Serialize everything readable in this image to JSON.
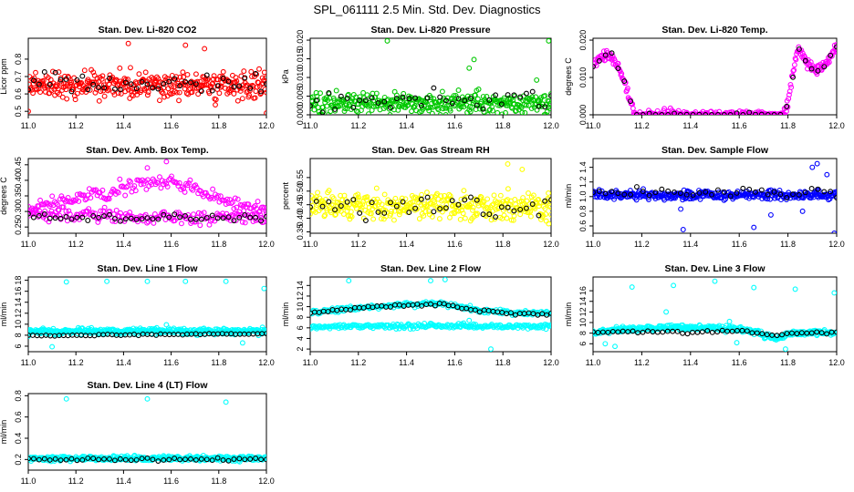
{
  "figure_title": "SPL_061111  2.5 Min. Std. Dev. Diagnostics",
  "colors": {
    "black": "#000000",
    "red": "#ff0000",
    "green": "#00c800",
    "magenta": "#ff00ff",
    "yellow": "#ffff00",
    "blue": "#0000ff",
    "cyan": "#00ffff"
  },
  "chart_data": [
    {
      "type": "scatter",
      "title": "Stan. Dev. Li-820 CO2",
      "ylabel": "Licor ppm",
      "xlim": [
        11.0,
        12.0
      ],
      "ylim": [
        0.48,
        0.92
      ],
      "xticks": [
        "11.0",
        "11.2",
        "11.4",
        "11.6",
        "11.8",
        "12.0"
      ],
      "yticks": [
        "0.5",
        "0.6",
        "0.7",
        "0.8"
      ],
      "color": "red",
      "gen": {
        "mode": "noise",
        "base": 0.65,
        "spread": 0.075,
        "n": 360,
        "seed": 11
      },
      "black_gen": {
        "mode": "noise",
        "base": 0.66,
        "spread": 0.06,
        "n": 45,
        "seed": 12
      },
      "outliers": [
        [
          11.66,
          0.88
        ],
        [
          11.42,
          0.89
        ],
        [
          11.74,
          0.86
        ],
        [
          11.0,
          0.5
        ],
        [
          12.0,
          0.49
        ]
      ]
    },
    {
      "type": "scatter",
      "title": "Stan. Dev. Li-820 Pressure",
      "ylabel": "kPa",
      "xlim": [
        11.0,
        12.0
      ],
      "ylim": [
        0.0,
        0.0205
      ],
      "xticks": [
        "11.0",
        "11.2",
        "11.4",
        "11.6",
        "11.8",
        "12.0"
      ],
      "yticks": [
        "0.000",
        "0.005",
        "0.010",
        "0.015",
        "0.020"
      ],
      "color": "green",
      "gen": {
        "mode": "noise",
        "base": 0.003,
        "spread": 0.0028,
        "n": 360,
        "seed": 21,
        "floor": 0.0
      },
      "black_gen": {
        "mode": "noise",
        "base": 0.004,
        "spread": 0.0025,
        "n": 40,
        "seed": 22,
        "floor": 0.0
      },
      "outliers": [
        [
          11.32,
          0.0198
        ],
        [
          11.66,
          0.0125
        ],
        [
          11.68,
          0.0148
        ],
        [
          11.94,
          0.0093
        ],
        [
          11.99,
          0.0198
        ]
      ]
    },
    {
      "type": "scatter",
      "title": "Stan. Dev. Li-820 Temp.",
      "ylabel": "degrees C",
      "xlim": [
        11.0,
        12.0
      ],
      "ylim": [
        0.0,
        0.0205
      ],
      "xticks": [
        "11.0",
        "11.2",
        "11.4",
        "11.6",
        "11.8",
        "12.0"
      ],
      "yticks": [
        "0.000",
        "0.010",
        "0.020"
      ],
      "color": "magenta",
      "gen": {
        "mode": "piecewise",
        "n": 360,
        "seed": 31,
        "spread": 0.0012,
        "floor": 0.0,
        "knots": [
          [
            11.0,
            0.0135
          ],
          [
            11.05,
            0.016
          ],
          [
            11.08,
            0.0155
          ],
          [
            11.13,
            0.009
          ],
          [
            11.17,
            0.0
          ],
          [
            11.78,
            0.0
          ],
          [
            11.8,
            0.003
          ],
          [
            11.84,
            0.018
          ],
          [
            11.88,
            0.014
          ],
          [
            11.92,
            0.012
          ],
          [
            11.96,
            0.014
          ],
          [
            12.0,
            0.018
          ]
        ]
      },
      "black_gen": {
        "mode": "piecewise",
        "n": 40,
        "seed": 32,
        "spread": 0.0008,
        "floor": 0.0,
        "knots": [
          [
            11.0,
            0.0135
          ],
          [
            11.05,
            0.016
          ],
          [
            11.08,
            0.0155
          ],
          [
            11.13,
            0.009
          ],
          [
            11.17,
            0.0
          ],
          [
            11.78,
            0.0
          ],
          [
            11.8,
            0.003
          ],
          [
            11.84,
            0.018
          ],
          [
            11.88,
            0.014
          ],
          [
            11.92,
            0.012
          ],
          [
            11.96,
            0.014
          ],
          [
            12.0,
            0.018
          ]
        ]
      },
      "outliers": []
    },
    {
      "type": "scatter",
      "title": "Stan. Dev. Amb. Box Temp.",
      "ylabel": "degrees C",
      "xlim": [
        11.0,
        12.0
      ],
      "ylim": [
        0.23,
        0.47
      ],
      "xticks": [
        "11.0",
        "11.2",
        "11.4",
        "11.6",
        "11.8",
        "12.0"
      ],
      "yticks": [
        "0.25",
        "0.30",
        "0.35",
        "0.40",
        "0.45"
      ],
      "color": "magenta",
      "gen": {
        "mode": "band2",
        "n": 360,
        "seed": 41,
        "spread": 0.022,
        "knots": [
          [
            11.0,
            0.31
          ],
          [
            11.2,
            0.34
          ],
          [
            11.45,
            0.385
          ],
          [
            11.6,
            0.395
          ],
          [
            11.8,
            0.34
          ],
          [
            12.0,
            0.3
          ]
        ],
        "knots2": [
          [
            11.0,
            0.29
          ],
          [
            11.3,
            0.285
          ],
          [
            11.6,
            0.28
          ],
          [
            12.0,
            0.285
          ]
        ]
      },
      "black_gen": {
        "mode": "noise",
        "base": 0.28,
        "spread": 0.013,
        "n": 45,
        "seed": 42
      },
      "outliers": [
        [
          11.58,
          0.46
        ],
        [
          11.5,
          0.44
        ]
      ]
    },
    {
      "type": "scatter",
      "title": "Stan. Dev. Gas Stream RH",
      "ylabel": "percent",
      "xlim": [
        11.0,
        12.0
      ],
      "ylim": [
        0.345,
        0.62
      ],
      "xticks": [
        "11.0",
        "11.2",
        "11.4",
        "11.6",
        "11.8",
        "12.0"
      ],
      "yticks": [
        "0.35",
        "0.40",
        "0.45",
        "0.50",
        "0.55"
      ],
      "color": "yellow",
      "gen": {
        "mode": "noise",
        "base": 0.445,
        "spread": 0.045,
        "n": 360,
        "seed": 51
      },
      "black_gen": {
        "mode": "noise",
        "base": 0.44,
        "spread": 0.04,
        "n": 40,
        "seed": 52
      },
      "outliers": [
        [
          11.82,
          0.6
        ],
        [
          11.88,
          0.58
        ],
        [
          11.98,
          0.39
        ],
        [
          11.99,
          0.38
        ]
      ]
    },
    {
      "type": "scatter",
      "title": "Stan. Dev. Sample Flow",
      "ylabel": "ml/min",
      "xlim": [
        11.0,
        12.0
      ],
      "ylim": [
        0.5,
        1.52
      ],
      "xticks": [
        "11.0",
        "11.2",
        "11.4",
        "11.6",
        "11.8",
        "12.0"
      ],
      "yticks": [
        "0.6",
        "0.8",
        "1.0",
        "1.2",
        "1.4"
      ],
      "color": "blue",
      "gen": {
        "mode": "noise",
        "base": 1.02,
        "spread": 0.06,
        "n": 360,
        "seed": 61
      },
      "black_gen": {
        "mode": "noise",
        "base": 1.06,
        "spread": 0.06,
        "n": 40,
        "seed": 62
      },
      "outliers": [
        [
          11.36,
          0.83
        ],
        [
          11.73,
          0.75
        ],
        [
          11.86,
          0.8
        ],
        [
          11.92,
          1.45
        ],
        [
          11.9,
          1.4
        ],
        [
          11.96,
          1.3
        ],
        [
          11.37,
          0.55
        ],
        [
          11.99,
          0.5
        ],
        [
          11.66,
          0.58
        ]
      ]
    },
    {
      "type": "scatter",
      "title": "Stan. Dev. Line 1 Flow",
      "ylabel": "ml/min",
      "xlim": [
        11.0,
        12.0
      ],
      "ylim": [
        5.0,
        18.6
      ],
      "xticks": [
        "11.0",
        "11.2",
        "11.4",
        "11.6",
        "11.8",
        "12.0"
      ],
      "yticks": [
        "6",
        "8",
        "10",
        "12",
        "14",
        "16",
        "18"
      ],
      "color": "cyan",
      "gen": {
        "mode": "band",
        "base": 8.7,
        "spread": 0.55,
        "n": 420,
        "seed": 71
      },
      "black_gen": {
        "mode": "line",
        "base": 7.9,
        "spread": 0.12,
        "n": 55,
        "seed": 72,
        "rise": 0.4
      },
      "outliers": [
        [
          11.16,
          17.7
        ],
        [
          11.33,
          17.8
        ],
        [
          11.5,
          17.8
        ],
        [
          11.66,
          17.8
        ],
        [
          11.83,
          17.8
        ],
        [
          11.99,
          16.5
        ],
        [
          11.1,
          5.9
        ],
        [
          11.58,
          9.9
        ],
        [
          11.9,
          6.6
        ]
      ]
    },
    {
      "type": "scatter",
      "title": "Stan. Dev. Line 2 Flow",
      "ylabel": "ml/min",
      "xlim": [
        11.0,
        12.0
      ],
      "ylim": [
        1.5,
        15.6
      ],
      "xticks": [
        "11.0",
        "11.2",
        "11.4",
        "11.6",
        "11.8",
        "12.0"
      ],
      "yticks": [
        "2",
        "4",
        "6",
        "8",
        "10",
        "12",
        "14"
      ],
      "color": "cyan",
      "gen": {
        "mode": "band2",
        "n": 480,
        "seed": 81,
        "spread": 0.45,
        "knots": [
          [
            11.0,
            8.8
          ],
          [
            11.2,
            9.8
          ],
          [
            11.45,
            10.5
          ],
          [
            11.55,
            10.6
          ],
          [
            11.7,
            9.3
          ],
          [
            11.85,
            8.8
          ],
          [
            12.0,
            8.8
          ]
        ],
        "knots2": [
          [
            11.0,
            6.2
          ],
          [
            11.5,
            6.4
          ],
          [
            12.0,
            6.2
          ]
        ]
      },
      "black_gen": {
        "mode": "piecewise",
        "n": 55,
        "seed": 82,
        "spread": 0.25,
        "knots": [
          [
            11.0,
            8.8
          ],
          [
            11.2,
            9.7
          ],
          [
            11.45,
            10.4
          ],
          [
            11.55,
            10.5
          ],
          [
            11.7,
            9.2
          ],
          [
            11.85,
            8.6
          ],
          [
            12.0,
            8.6
          ]
        ]
      },
      "outliers": [
        [
          11.16,
          14.9
        ],
        [
          11.5,
          14.9
        ],
        [
          11.56,
          15.1
        ],
        [
          11.75,
          2.0
        ],
        [
          11.68,
          6.0
        ],
        [
          11.66,
          7.4
        ]
      ]
    },
    {
      "type": "scatter",
      "title": "Stan. Dev. Line 3 Flow",
      "ylabel": "ml/min",
      "xlim": [
        11.0,
        12.0
      ],
      "ylim": [
        4.5,
        18.6
      ],
      "xticks": [
        "11.0",
        "11.2",
        "11.4",
        "11.6",
        "11.8",
        "12.0"
      ],
      "yticks": [
        "6",
        "8",
        "10",
        "12",
        "14",
        "16"
      ],
      "color": "cyan",
      "gen": {
        "mode": "piecewise",
        "n": 420,
        "seed": 91,
        "spread": 0.5,
        "knots": [
          [
            11.0,
            8.0
          ],
          [
            11.1,
            8.6
          ],
          [
            11.3,
            9.1
          ],
          [
            11.5,
            9.0
          ],
          [
            11.6,
            8.8
          ],
          [
            11.7,
            7.6
          ],
          [
            11.75,
            7.0
          ],
          [
            11.82,
            8.1
          ],
          [
            12.0,
            8.1
          ]
        ]
      },
      "black_gen": {
        "mode": "piecewise",
        "n": 50,
        "seed": 92,
        "spread": 0.2,
        "knots": [
          [
            11.0,
            8.1
          ],
          [
            11.2,
            8.3
          ],
          [
            11.4,
            8.2
          ],
          [
            11.6,
            8.4
          ],
          [
            11.75,
            7.5
          ],
          [
            11.8,
            8.0
          ],
          [
            12.0,
            8.1
          ]
        ]
      },
      "outliers": [
        [
          11.16,
          16.7
        ],
        [
          11.33,
          17.0
        ],
        [
          11.5,
          17.8
        ],
        [
          11.66,
          16.6
        ],
        [
          11.83,
          16.3
        ],
        [
          11.99,
          15.6
        ],
        [
          11.3,
          12.0
        ],
        [
          11.05,
          6.0
        ],
        [
          11.09,
          5.5
        ],
        [
          11.79,
          5.0
        ],
        [
          11.59,
          6.2
        ],
        [
          11.56,
          10.2
        ]
      ]
    },
    {
      "type": "scatter",
      "title": "Stan. Dev. Line 4 (LT) Flow",
      "ylabel": "ml/min",
      "xlim": [
        11.0,
        12.0
      ],
      "ylim": [
        0.1,
        0.82
      ],
      "xticks": [
        "11.0",
        "11.2",
        "11.4",
        "11.6",
        "11.8",
        "12.0"
      ],
      "yticks": [
        "0.2",
        "0.4",
        "0.6",
        "0.8"
      ],
      "color": "cyan",
      "gen": {
        "mode": "band",
        "base": 0.21,
        "spread": 0.022,
        "n": 420,
        "seed": 101
      },
      "black_gen": {
        "mode": "line",
        "base": 0.2,
        "spread": 0.015,
        "n": 45,
        "seed": 102,
        "rise": 0.0
      },
      "outliers": [
        [
          11.16,
          0.77
        ],
        [
          11.5,
          0.77
        ],
        [
          11.83,
          0.74
        ]
      ]
    }
  ]
}
